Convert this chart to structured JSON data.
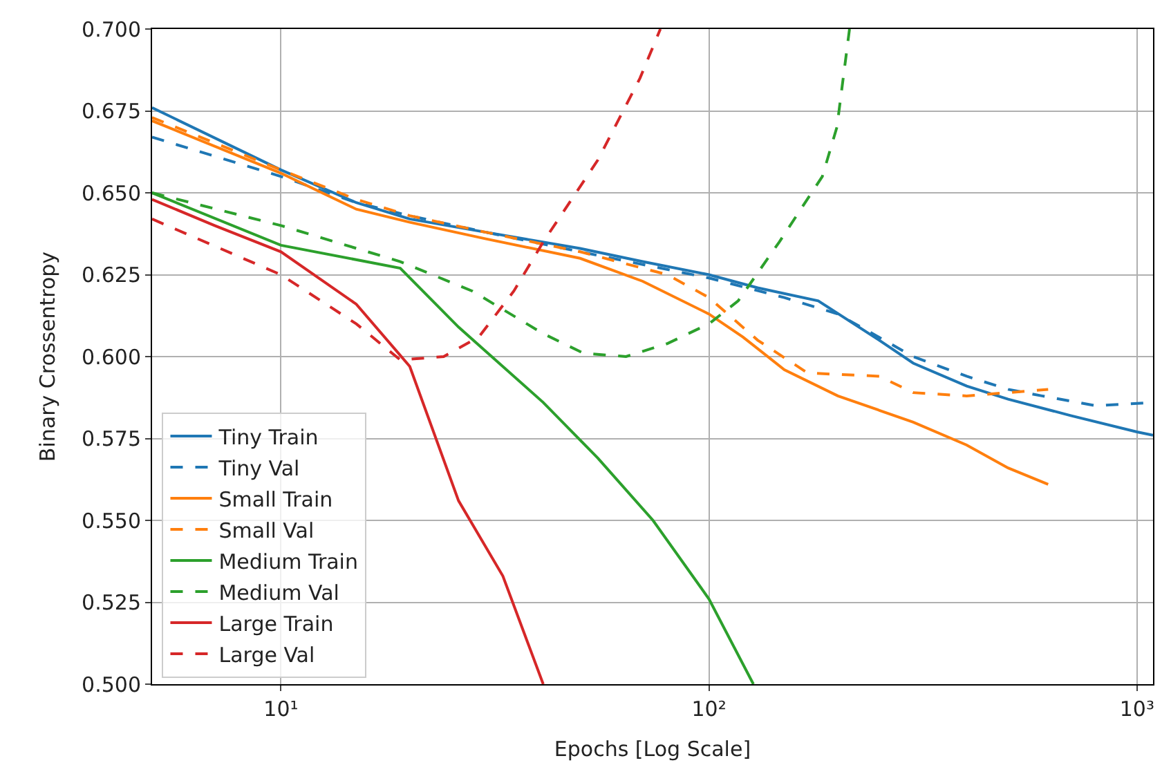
{
  "chart_data": {
    "type": "line",
    "xlabel": "Epochs [Log Scale]",
    "ylabel": "Binary Crossentropy",
    "log": "x",
    "xlim": [
      5,
      1090
    ],
    "xticks": [
      {
        "value": 10,
        "label": "10¹"
      },
      {
        "value": 100,
        "label": "10²"
      },
      {
        "value": 1000,
        "label": "10³"
      }
    ],
    "ylim": [
      0.5,
      0.7
    ],
    "yticks": [
      {
        "value": 0.5,
        "label": "0.500"
      },
      {
        "value": 0.525,
        "label": "0.525"
      },
      {
        "value": 0.55,
        "label": "0.550"
      },
      {
        "value": 0.575,
        "label": "0.575"
      },
      {
        "value": 0.6,
        "label": "0.600"
      },
      {
        "value": 0.625,
        "label": "0.625"
      },
      {
        "value": 0.65,
        "label": "0.650"
      },
      {
        "value": 0.675,
        "label": "0.675"
      },
      {
        "value": 0.7,
        "label": "0.700"
      }
    ],
    "grid": true,
    "legend": "bottom left",
    "marker": "none",
    "series": [
      {
        "name": "Tiny Train",
        "color": "#1f77b4",
        "line_style": "solid",
        "x": [
          5,
          10,
          15,
          20,
          30,
          50,
          70,
          100,
          130,
          180,
          250,
          300,
          400,
          500,
          700,
          1000,
          1090
        ],
        "values": [
          0.676,
          0.657,
          0.647,
          0.642,
          0.638,
          0.633,
          0.629,
          0.625,
          0.621,
          0.617,
          0.605,
          0.598,
          0.591,
          0.587,
          0.582,
          0.577,
          0.576
        ]
      },
      {
        "name": "Tiny Val",
        "color": "#1f77b4",
        "line_style": "dashed",
        "x": [
          5,
          10,
          15,
          20,
          30,
          50,
          100,
          150,
          200,
          300,
          400,
          500,
          600,
          800,
          1090
        ],
        "values": [
          0.667,
          0.655,
          0.647,
          0.643,
          0.638,
          0.632,
          0.624,
          0.618,
          0.613,
          0.6,
          0.594,
          0.59,
          0.588,
          0.585,
          0.586
        ]
      },
      {
        "name": "Small Train",
        "color": "#ff7f0e",
        "line_style": "solid",
        "x": [
          5,
          10,
          15,
          20,
          30,
          50,
          70,
          100,
          120,
          150,
          200,
          300,
          400,
          500,
          620
        ],
        "values": [
          0.672,
          0.656,
          0.645,
          0.641,
          0.636,
          0.63,
          0.623,
          0.613,
          0.606,
          0.596,
          0.588,
          0.58,
          0.573,
          0.566,
          0.561
        ]
      },
      {
        "name": "Small Val",
        "color": "#ff7f0e",
        "line_style": "dashed",
        "x": [
          5,
          10,
          15,
          20,
          30,
          50,
          80,
          100,
          130,
          170,
          250,
          300,
          400,
          500,
          620
        ],
        "values": [
          0.673,
          0.657,
          0.648,
          0.643,
          0.638,
          0.632,
          0.625,
          0.618,
          0.605,
          0.595,
          0.594,
          0.589,
          0.588,
          0.589,
          0.59
        ]
      },
      {
        "name": "Medium Train",
        "color": "#2ca02c",
        "line_style": "solid",
        "x": [
          5,
          10,
          19,
          26,
          41,
          55,
          74,
          100,
          127
        ],
        "values": [
          0.65,
          0.634,
          0.627,
          0.609,
          0.586,
          0.569,
          0.55,
          0.526,
          0.5
        ]
      },
      {
        "name": "Medium Val",
        "color": "#2ca02c",
        "line_style": "dashed",
        "x": [
          5,
          10,
          19,
          28,
          41,
          51,
          64,
          80,
          100,
          117,
          146,
          184,
          199,
          213
        ],
        "values": [
          0.65,
          0.64,
          0.629,
          0.62,
          0.607,
          0.601,
          0.6,
          0.604,
          0.61,
          0.617,
          0.635,
          0.655,
          0.67,
          0.7
        ]
      },
      {
        "name": "Large Train",
        "color": "#d62728",
        "line_style": "solid",
        "x": [
          5,
          7,
          10,
          15,
          20,
          26,
          33,
          41
        ],
        "values": [
          0.648,
          0.64,
          0.632,
          0.616,
          0.597,
          0.556,
          0.533,
          0.5
        ]
      },
      {
        "name": "Large Val",
        "color": "#d62728",
        "line_style": "dashed",
        "x": [
          5,
          10,
          15,
          19,
          24,
          29,
          35,
          41,
          55,
          69,
          77
        ],
        "values": [
          0.642,
          0.625,
          0.61,
          0.599,
          0.6,
          0.606,
          0.62,
          0.635,
          0.66,
          0.685,
          0.7
        ]
      }
    ]
  }
}
